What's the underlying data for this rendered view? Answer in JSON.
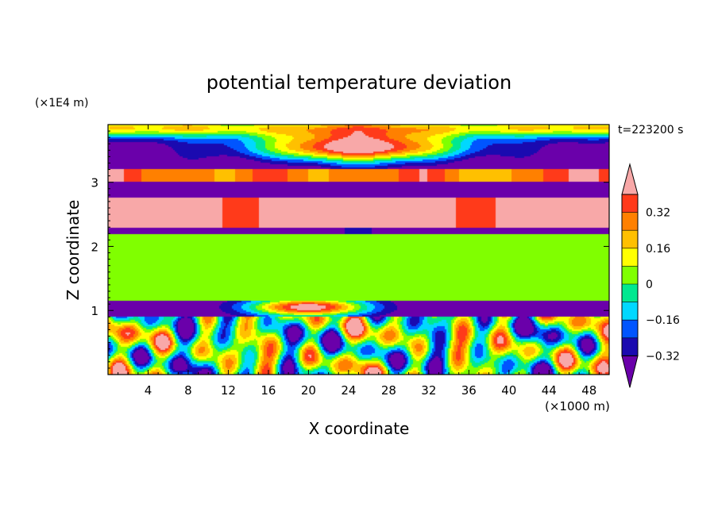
{
  "chart_data": {
    "type": "heatmap",
    "title": "potential temperature deviation",
    "xlabel": "X coordinate",
    "ylabel": "Z coordinate",
    "x_unit": "(×1000 m)",
    "y_unit": "(×1E4 m)",
    "time_label": "t=223200 s",
    "xlim": [
      0,
      50
    ],
    "ylim": [
      0,
      3.9
    ],
    "x_ticks": [
      4,
      8,
      12,
      16,
      20,
      24,
      28,
      32,
      36,
      40,
      44,
      48
    ],
    "y_ticks": [
      1,
      2,
      3
    ],
    "colorbar": {
      "ticks": [
        "0.32",
        "0.16",
        "0",
        "−0.16",
        "−0.32"
      ],
      "tick_values": [
        0.32,
        0.16,
        0,
        -0.16,
        -0.32
      ],
      "levels": [
        -0.4,
        -0.32,
        -0.24,
        -0.16,
        -0.08,
        0,
        0.08,
        0.16,
        0.24,
        0.32,
        0.4
      ],
      "colors": [
        "#6a00aa",
        "#1a0ab0",
        "#0055ff",
        "#00d8ff",
        "#00e890",
        "#80ff00",
        "#ffff00",
        "#ffc000",
        "#ff8000",
        "#ff3a1a",
        "#f8a8a8"
      ],
      "extend": "both"
    }
  }
}
